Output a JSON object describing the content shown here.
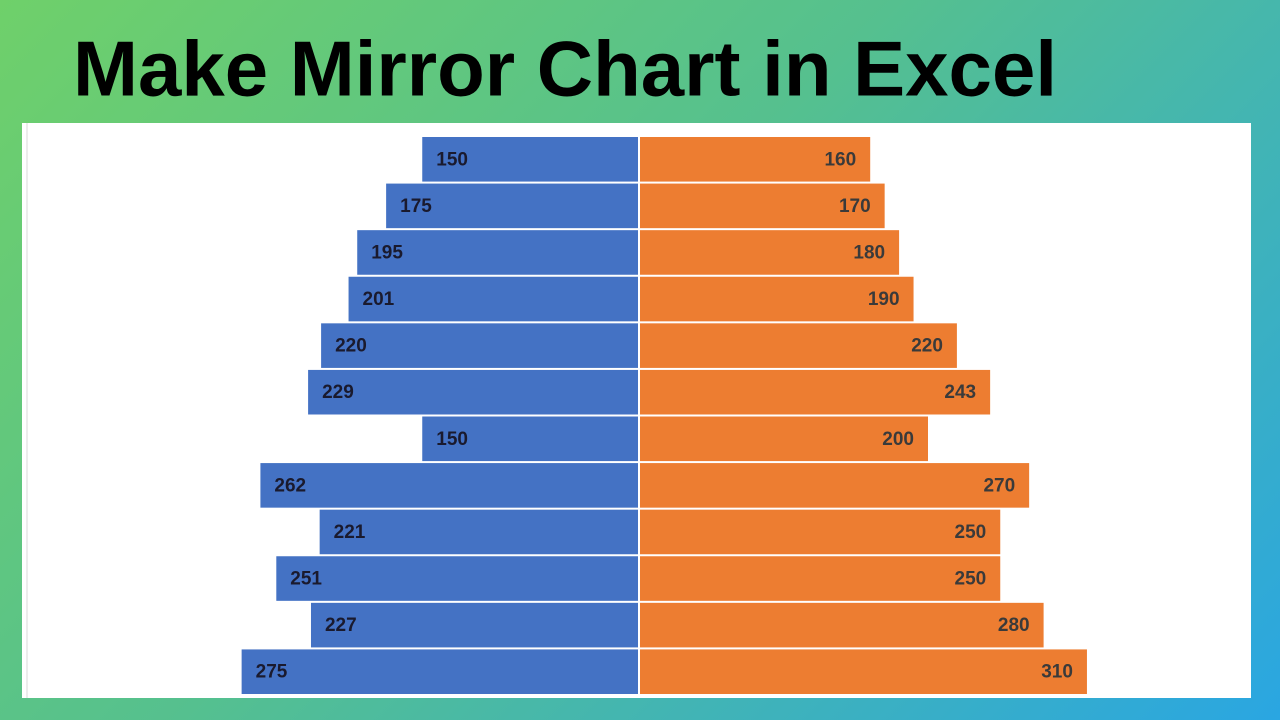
{
  "chart_data": {
    "type": "bar",
    "title": "Make Mirror Chart in Excel",
    "mirror": true,
    "categories": [
      null,
      null,
      null,
      null,
      null,
      null,
      null,
      null,
      null,
      null,
      null,
      null
    ],
    "series": [
      {
        "color": "#4472c4",
        "values": [
          150,
          175,
          195,
          201,
          220,
          229,
          150,
          262,
          221,
          251,
          227,
          275
        ]
      },
      {
        "color": "#ed7d31",
        "values": [
          160,
          170,
          180,
          190,
          220,
          243,
          200,
          270,
          250,
          250,
          280,
          310
        ]
      }
    ],
    "xlim": [
      -400,
      400
    ]
  }
}
